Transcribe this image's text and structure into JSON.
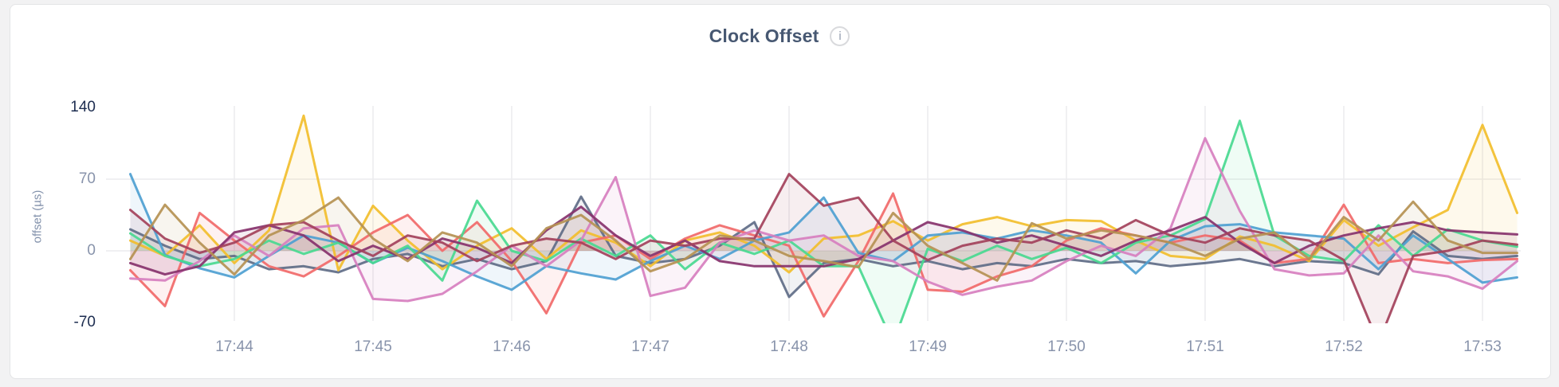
{
  "header": {
    "info_icon_glyph": "i"
  },
  "colors": {
    "page_bg": "#f2f2f3",
    "card_bg": "#ffffff",
    "card_border": "#e3e4e6",
    "gridline": "#ececee",
    "title_text": "#475872",
    "tick_emphasis": "#1d2d50",
    "tick_normal": "#8893ab",
    "axis_title": "#8291ab",
    "info_icon_border": "#d9dadd",
    "info_icon_glyph": "#b8bec9"
  },
  "chart_data": {
    "type": "line",
    "title": "Clock Offset",
    "xlabel": "",
    "ylabel": "offset (µs)",
    "ylim": [
      -70,
      140
    ],
    "grid": true,
    "legend_position": "none",
    "y_ticks": [
      {
        "label": "140",
        "value": 140,
        "emphasis": true
      },
      {
        "label": "70",
        "value": 70,
        "emphasis": false
      },
      {
        "label": "0",
        "value": 0,
        "emphasis": false
      },
      {
        "label": "-70",
        "value": -70,
        "emphasis": true
      }
    ],
    "y_gridlines": [
      70,
      0
    ],
    "x_start": "17:43:15",
    "x_step_seconds": 15,
    "x_ticks": [
      {
        "label": "17:44",
        "index": 3
      },
      {
        "label": "17:45",
        "index": 7
      },
      {
        "label": "17:46",
        "index": 11
      },
      {
        "label": "17:47",
        "index": 15
      },
      {
        "label": "17:48",
        "index": 19
      },
      {
        "label": "17:49",
        "index": 23
      },
      {
        "label": "17:50",
        "index": 27
      },
      {
        "label": "17:51",
        "index": 31
      },
      {
        "label": "17:52",
        "index": 35
      },
      {
        "label": "17:53",
        "index": 39
      }
    ],
    "series": [
      {
        "id": "series-1",
        "color": "#5F6C87",
        "values": [
          21,
          5,
          -8,
          -5,
          -18,
          -15,
          -21,
          -8,
          -3,
          -15,
          -8,
          -18,
          -10,
          53,
          -5,
          -12,
          -8,
          5,
          28,
          -45,
          -12,
          -8,
          -15,
          -10,
          -18,
          -12,
          -15,
          -8,
          -12,
          -10,
          -15,
          -12,
          -8,
          -15,
          -10,
          -12,
          -23,
          19,
          -5,
          -8,
          -5
        ]
      },
      {
        "id": "series-2",
        "color": "#F2BE2C",
        "values": [
          10,
          -5,
          25,
          -12,
          20,
          132,
          -19,
          44,
          10,
          -18,
          5,
          22,
          -8,
          20,
          8,
          -15,
          10,
          18,
          5,
          -21,
          12,
          15,
          29,
          10,
          26,
          33,
          24,
          30,
          29,
          10,
          -5,
          -8,
          14,
          5,
          -10,
          30,
          5,
          23,
          40,
          123,
          37
        ]
      },
      {
        "id": "series-3",
        "color": "#F16969",
        "values": [
          -19,
          -54,
          37,
          10,
          -15,
          -25,
          -5,
          18,
          35,
          0,
          28,
          -10,
          -61,
          8,
          15,
          -8,
          12,
          25,
          15,
          5,
          -64,
          -10,
          56,
          -38,
          -40,
          -25,
          -15,
          10,
          22,
          15,
          8,
          15,
          10,
          -12,
          -8,
          45,
          -12,
          -8,
          -12,
          -9,
          -8
        ]
      },
      {
        "id": "series-4",
        "color": "#4E9FD1",
        "values": [
          75,
          -4,
          -17,
          -26,
          -5,
          15,
          8,
          -12,
          3,
          -10,
          -25,
          -38,
          -15,
          -22,
          -28,
          -10,
          5,
          -8,
          10,
          18,
          52,
          -2,
          -10,
          15,
          18,
          12,
          20,
          15,
          8,
          -22,
          10,
          24,
          26,
          18,
          15,
          12,
          -18,
          15,
          -8,
          -31,
          -26
        ]
      },
      {
        "id": "series-5",
        "color": "#49D990",
        "values": [
          17,
          -5,
          -15,
          -8,
          10,
          -3,
          8,
          -12,
          5,
          -29,
          49,
          0,
          -10,
          12,
          -5,
          15,
          -18,
          8,
          -3,
          10,
          -15,
          -15,
          -90,
          2,
          -10,
          5,
          -8,
          3,
          -12,
          8,
          15,
          31,
          127,
          15,
          -5,
          -10,
          25,
          -5,
          21,
          10,
          4
        ]
      },
      {
        "id": "series-6",
        "color": "#D77FBF",
        "values": [
          -27,
          -29,
          -10,
          15,
          -5,
          22,
          25,
          -47,
          -49,
          -42,
          -20,
          5,
          -15,
          10,
          72,
          -44,
          -36,
          8,
          20,
          10,
          15,
          -5,
          -10,
          -30,
          -43,
          -35,
          -29,
          -10,
          5,
          -5,
          22,
          110,
          39,
          -18,
          -24,
          -22,
          15,
          -20,
          -25,
          -37,
          -10
        ]
      },
      {
        "id": "series-7",
        "color": "#87326D",
        "values": [
          -12,
          -23,
          -15,
          18,
          25,
          15,
          -10,
          5,
          -8,
          12,
          3,
          -12,
          20,
          43,
          15,
          -5,
          10,
          -10,
          -15,
          -15,
          -15,
          -8,
          10,
          28,
          20,
          8,
          15,
          5,
          -5,
          10,
          20,
          33,
          8,
          -12,
          5,
          15,
          22,
          28,
          20,
          18,
          16
        ]
      },
      {
        "id": "series-8",
        "color": "#A3415B",
        "values": [
          40,
          12,
          -2,
          8,
          25,
          28,
          10,
          -5,
          15,
          8,
          -10,
          5,
          12,
          8,
          -8,
          10,
          5,
          12,
          12,
          75,
          44,
          52,
          10,
          -9,
          5,
          12,
          8,
          20,
          12,
          30,
          15,
          8,
          22,
          15,
          10,
          -9,
          -90,
          -5,
          0,
          10,
          6
        ]
      },
      {
        "id": "series-9",
        "color": "#B59153",
        "values": [
          -8,
          45,
          8,
          -23,
          15,
          30,
          52,
          12,
          -10,
          18,
          8,
          -15,
          22,
          35,
          10,
          -20,
          -8,
          15,
          10,
          -5,
          -10,
          -16,
          37,
          5,
          -12,
          -29,
          27,
          12,
          20,
          15,
          8,
          -5,
          12,
          18,
          -8,
          33,
          10,
          48,
          10,
          -2,
          -2
        ]
      }
    ]
  }
}
